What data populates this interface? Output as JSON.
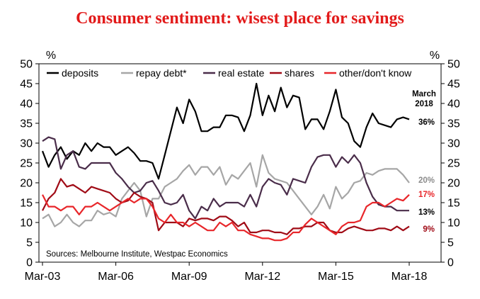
{
  "chart_data": {
    "type": "line",
    "title": "Consumer sentiment: wisest place for savings",
    "ylabel": "%",
    "ylabel_right": "%",
    "ylim": [
      0,
      50
    ],
    "y_ticks": [
      "0",
      "5",
      "10",
      "15",
      "20",
      "25",
      "30",
      "35",
      "40",
      "45",
      "50"
    ],
    "x_ticks": [
      "Mar-03",
      "Mar-06",
      "Mar-09",
      "Mar-12",
      "Mar-15",
      "Mar-18"
    ],
    "x_range": [
      2003.0,
      2018.0
    ],
    "source": "Sources: Melbourne Institute, Westpac Economics",
    "annotation_header": [
      "March",
      "2018"
    ],
    "series": [
      {
        "name": "deposits",
        "color": "#000000",
        "end_label": "36%",
        "x": [
          2003.0,
          2003.25,
          2003.5,
          2003.75,
          2004.0,
          2004.25,
          2004.5,
          2004.75,
          2005.0,
          2005.25,
          2005.5,
          2005.75,
          2006.0,
          2006.25,
          2006.5,
          2006.75,
          2007.0,
          2007.25,
          2007.5,
          2007.75,
          2008.0,
          2008.25,
          2008.5,
          2008.75,
          2009.0,
          2009.25,
          2009.5,
          2009.75,
          2010.0,
          2010.25,
          2010.5,
          2010.75,
          2011.0,
          2011.25,
          2011.5,
          2011.75,
          2012.0,
          2012.25,
          2012.5,
          2012.75,
          2013.0,
          2013.25,
          2013.5,
          2013.75,
          2014.0,
          2014.25,
          2014.5,
          2014.75,
          2015.0,
          2015.25,
          2015.5,
          2015.75,
          2016.0,
          2016.25,
          2016.5,
          2016.75,
          2017.0,
          2017.25,
          2017.5,
          2017.75,
          2018.0
        ],
        "values": [
          28,
          24,
          27,
          29,
          26,
          28,
          27,
          30,
          28,
          30,
          29,
          29,
          27,
          28,
          29,
          27.5,
          25.5,
          25.5,
          25,
          21,
          27,
          33,
          39,
          35,
          41,
          38,
          33,
          33,
          34,
          34,
          37,
          37,
          36.5,
          33,
          37,
          45,
          37,
          42,
          38,
          44,
          39,
          42,
          41.5,
          33.5,
          36,
          36,
          33.5,
          38,
          43.5,
          36.5,
          35,
          30.5,
          29,
          34,
          37.5,
          35,
          34.5,
          34,
          36,
          36.5,
          36
        ]
      },
      {
        "name": "repay debt*",
        "color": "#a6a6a6",
        "end_label": "20%",
        "x": [
          2003.0,
          2003.25,
          2003.5,
          2003.75,
          2004.0,
          2004.25,
          2004.5,
          2004.75,
          2005.0,
          2005.25,
          2005.5,
          2005.75,
          2006.0,
          2006.25,
          2006.5,
          2006.75,
          2007.0,
          2007.25,
          2007.5,
          2007.75,
          2008.0,
          2008.25,
          2008.5,
          2008.75,
          2009.0,
          2009.25,
          2009.5,
          2009.75,
          2010.0,
          2010.25,
          2010.5,
          2010.75,
          2011.0,
          2011.25,
          2011.5,
          2011.75,
          2012.0,
          2012.25,
          2012.5,
          2012.75,
          2013.0,
          2013.25,
          2013.5,
          2013.75,
          2014.0,
          2014.25,
          2014.5,
          2014.75,
          2015.0,
          2015.25,
          2015.5,
          2015.75,
          2016.0,
          2016.25,
          2016.5,
          2016.75,
          2017.0,
          2017.25,
          2017.5,
          2017.75,
          2018.0
        ],
        "values": [
          11,
          12,
          9,
          10,
          12,
          10,
          9,
          10.5,
          10.5,
          13,
          12,
          12.5,
          11.5,
          16,
          18,
          20,
          18,
          11.5,
          16,
          16,
          19,
          20,
          21,
          23,
          24.5,
          22,
          24,
          24,
          22,
          24,
          19.5,
          22,
          21,
          23,
          25,
          19,
          27,
          22.5,
          21,
          20.5,
          20,
          18,
          16,
          14,
          12,
          14,
          17,
          13.5,
          19,
          16,
          17.5,
          20,
          20.5,
          22.5,
          22,
          23,
          23.5,
          23.5,
          23.5,
          22,
          20
        ]
      },
      {
        "name": "real estate",
        "color": "#4a2d4a",
        "end_label": "13%",
        "x": [
          2003.0,
          2003.25,
          2003.5,
          2003.75,
          2004.0,
          2004.25,
          2004.5,
          2004.75,
          2005.0,
          2005.25,
          2005.5,
          2005.75,
          2006.0,
          2006.25,
          2006.5,
          2006.75,
          2007.0,
          2007.25,
          2007.5,
          2007.75,
          2008.0,
          2008.25,
          2008.5,
          2008.75,
          2009.0,
          2009.25,
          2009.5,
          2009.75,
          2010.0,
          2010.25,
          2010.5,
          2010.75,
          2011.0,
          2011.25,
          2011.5,
          2011.75,
          2012.0,
          2012.25,
          2012.5,
          2012.75,
          2013.0,
          2013.25,
          2013.5,
          2013.75,
          2014.0,
          2014.25,
          2014.5,
          2014.75,
          2015.0,
          2015.25,
          2015.5,
          2015.75,
          2016.0,
          2016.25,
          2016.5,
          2016.75,
          2017.0,
          2017.25,
          2017.5,
          2017.75,
          2018.0
        ],
        "values": [
          30.5,
          31.5,
          31,
          23.5,
          27,
          28,
          24,
          23.5,
          25,
          25,
          25,
          25,
          22.5,
          21,
          19,
          17.5,
          18,
          20,
          20.5,
          18,
          15,
          14.5,
          15,
          17,
          13,
          11,
          14,
          13,
          16,
          14,
          15,
          15,
          15,
          14,
          17,
          14,
          19,
          21,
          20,
          19.5,
          17,
          21,
          20.5,
          20,
          24,
          26.5,
          27,
          27,
          24,
          26.5,
          25,
          27,
          25,
          20,
          16.5,
          14.5,
          14,
          14,
          13,
          13,
          13
        ]
      },
      {
        "name": "shares",
        "color": "#a00b16",
        "end_label": "9%",
        "x": [
          2003.0,
          2003.25,
          2003.5,
          2003.75,
          2004.0,
          2004.25,
          2004.5,
          2004.75,
          2005.0,
          2005.25,
          2005.5,
          2005.75,
          2006.0,
          2006.25,
          2006.5,
          2006.75,
          2007.0,
          2007.25,
          2007.5,
          2007.75,
          2008.0,
          2008.25,
          2008.5,
          2008.75,
          2009.0,
          2009.25,
          2009.5,
          2009.75,
          2010.0,
          2010.25,
          2010.5,
          2010.75,
          2011.0,
          2011.25,
          2011.5,
          2011.75,
          2012.0,
          2012.25,
          2012.5,
          2012.75,
          2013.0,
          2013.25,
          2013.5,
          2013.75,
          2014.0,
          2014.25,
          2014.5,
          2014.75,
          2015.0,
          2015.25,
          2015.5,
          2015.75,
          2016.0,
          2016.25,
          2016.5,
          2016.75,
          2017.0,
          2017.25,
          2017.5,
          2017.75,
          2018.0
        ],
        "values": [
          13,
          16,
          17.5,
          21,
          19,
          19.5,
          18.5,
          17.5,
          19,
          18.5,
          18,
          17.5,
          16,
          15,
          15.5,
          17.5,
          16.5,
          16,
          15,
          8,
          10,
          10,
          10,
          9,
          11,
          10.5,
          11,
          11,
          10.5,
          11.5,
          11.5,
          10.5,
          9,
          10,
          7.5,
          7.5,
          8,
          8,
          7.5,
          7.5,
          7,
          8.5,
          8.5,
          9,
          9,
          10,
          10,
          8,
          7.5,
          7.5,
          8.5,
          9,
          8.5,
          8,
          8,
          8.5,
          8.5,
          8,
          9,
          8,
          9
        ]
      },
      {
        "name": "other/don't know",
        "color": "#e8262a",
        "end_label": "17%",
        "x": [
          2003.0,
          2003.25,
          2003.5,
          2003.75,
          2004.0,
          2004.25,
          2004.5,
          2004.75,
          2005.0,
          2005.25,
          2005.5,
          2005.75,
          2006.0,
          2006.25,
          2006.5,
          2006.75,
          2007.0,
          2007.25,
          2007.5,
          2007.75,
          2008.0,
          2008.25,
          2008.5,
          2008.75,
          2009.0,
          2009.25,
          2009.5,
          2009.75,
          2010.0,
          2010.25,
          2010.5,
          2010.75,
          2011.0,
          2011.25,
          2011.5,
          2011.75,
          2012.0,
          2012.25,
          2012.5,
          2012.75,
          2013.0,
          2013.25,
          2013.5,
          2013.75,
          2014.0,
          2014.25,
          2014.5,
          2014.75,
          2015.0,
          2015.25,
          2015.5,
          2015.75,
          2016.0,
          2016.25,
          2016.5,
          2016.75,
          2017.0,
          2017.25,
          2017.5,
          2017.75,
          2018.0
        ],
        "values": [
          17,
          14,
          14,
          13,
          14,
          14,
          12,
          14,
          14,
          15,
          14,
          13,
          14,
          15,
          16,
          15,
          16,
          16,
          14,
          11,
          10,
          12,
          10,
          10,
          9,
          10,
          9,
          8,
          8,
          10,
          9,
          10,
          8,
          8,
          7,
          6.5,
          6,
          6,
          5.5,
          5.5,
          6,
          7.5,
          7.5,
          9.5,
          11,
          10,
          9,
          8,
          7,
          9,
          10,
          10,
          10.5,
          14,
          15,
          15,
          14,
          15,
          16,
          15.5,
          17
        ]
      }
    ]
  }
}
